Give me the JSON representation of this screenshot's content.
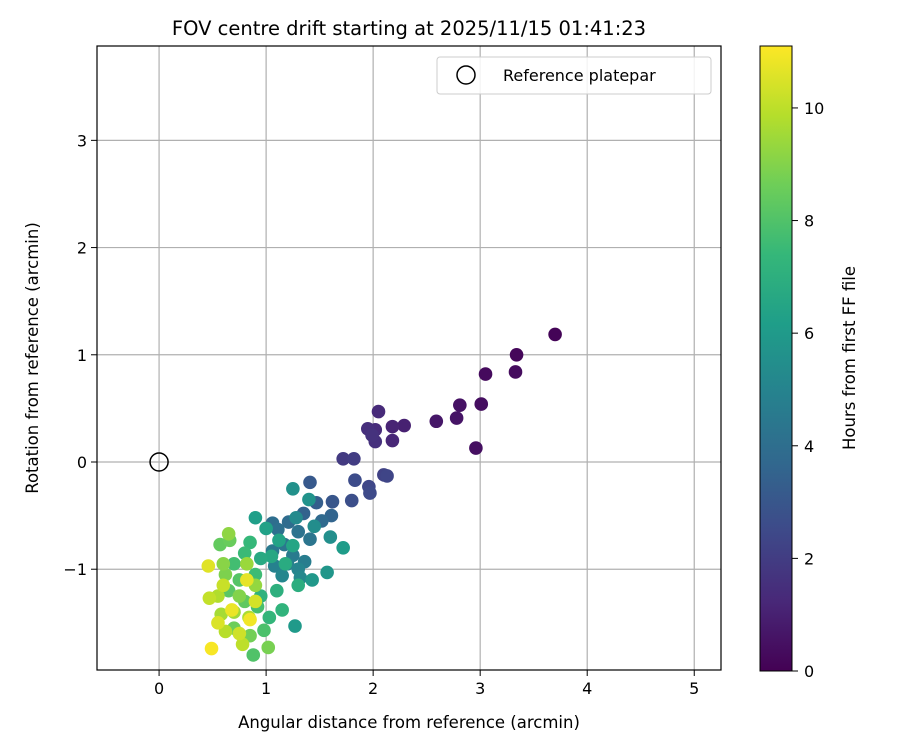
{
  "chart_data": {
    "type": "scatter",
    "title": "FOV centre drift starting at 2025/11/15 01:41:23",
    "xlabel": "Angular distance from reference (arcmin)",
    "ylabel": "Rotation from reference (arcmin)",
    "xlim": [
      -0.58,
      5.25
    ],
    "ylim": [
      -1.94,
      3.88
    ],
    "xticks": [
      0,
      1,
      2,
      3,
      4,
      5
    ],
    "yticks": [
      -1,
      0,
      1,
      2,
      3
    ],
    "grid": true,
    "legend": {
      "position": "top-right",
      "entries": [
        {
          "label": "Reference platepar",
          "marker": "open-circle"
        }
      ]
    },
    "reference_point": {
      "x": 0,
      "y": 0
    },
    "colorbar": {
      "label": "Hours from first FF file",
      "range": [
        0,
        11.1
      ],
      "ticks": [
        0,
        2,
        4,
        6,
        8,
        10
      ],
      "colormap": "viridis",
      "stops": [
        "#440154",
        "#482878",
        "#3e4989",
        "#31688e",
        "#26828e",
        "#1f9e89",
        "#35b779",
        "#6ece58",
        "#b5de2b",
        "#fde725"
      ]
    },
    "points": [
      {
        "x": 3.7,
        "y": 1.19,
        "t": 0.1
      },
      {
        "x": 3.34,
        "y": 1.0,
        "t": 0.2
      },
      {
        "x": 3.05,
        "y": 0.82,
        "t": 0.3
      },
      {
        "x": 3.33,
        "y": 0.84,
        "t": 0.35
      },
      {
        "x": 3.01,
        "y": 0.54,
        "t": 0.4
      },
      {
        "x": 2.96,
        "y": 0.13,
        "t": 0.45
      },
      {
        "x": 2.81,
        "y": 0.53,
        "t": 0.55
      },
      {
        "x": 2.78,
        "y": 0.41,
        "t": 0.6
      },
      {
        "x": 2.59,
        "y": 0.38,
        "t": 0.7
      },
      {
        "x": 2.29,
        "y": 0.34,
        "t": 1.0
      },
      {
        "x": 2.18,
        "y": 0.33,
        "t": 1.1
      },
      {
        "x": 2.18,
        "y": 0.2,
        "t": 1.2
      },
      {
        "x": 2.05,
        "y": 0.47,
        "t": 1.3
      },
      {
        "x": 2.02,
        "y": 0.3,
        "t": 1.4
      },
      {
        "x": 1.95,
        "y": 0.31,
        "t": 1.5
      },
      {
        "x": 2.02,
        "y": 0.19,
        "t": 1.55
      },
      {
        "x": 1.99,
        "y": 0.25,
        "t": 1.6
      },
      {
        "x": 1.72,
        "y": 0.03,
        "t": 1.9
      },
      {
        "x": 1.82,
        "y": 0.03,
        "t": 2.0
      },
      {
        "x": 2.1,
        "y": -0.12,
        "t": 2.2
      },
      {
        "x": 2.13,
        "y": -0.13,
        "t": 2.3
      },
      {
        "x": 1.96,
        "y": -0.23,
        "t": 2.4
      },
      {
        "x": 1.97,
        "y": -0.29,
        "t": 2.5
      },
      {
        "x": 1.83,
        "y": -0.17,
        "t": 2.6
      },
      {
        "x": 1.8,
        "y": -0.36,
        "t": 2.7
      },
      {
        "x": 1.62,
        "y": -0.37,
        "t": 3.0
      },
      {
        "x": 1.41,
        "y": -0.19,
        "t": 3.1
      },
      {
        "x": 1.47,
        "y": -0.38,
        "t": 3.3
      },
      {
        "x": 1.35,
        "y": -0.48,
        "t": 3.5
      },
      {
        "x": 1.61,
        "y": -0.5,
        "t": 3.6
      },
      {
        "x": 1.52,
        "y": -0.55,
        "t": 3.8
      },
      {
        "x": 1.21,
        "y": -0.56,
        "t": 3.9
      },
      {
        "x": 1.06,
        "y": -0.57,
        "t": 4.0
      },
      {
        "x": 1.11,
        "y": -0.63,
        "t": 4.1
      },
      {
        "x": 1.3,
        "y": -0.65,
        "t": 4.2
      },
      {
        "x": 1.41,
        "y": -0.72,
        "t": 4.3
      },
      {
        "x": 1.17,
        "y": -0.77,
        "t": 4.4
      },
      {
        "x": 1.06,
        "y": -0.83,
        "t": 4.5
      },
      {
        "x": 1.25,
        "y": -0.87,
        "t": 4.6
      },
      {
        "x": 1.36,
        "y": -0.93,
        "t": 4.7
      },
      {
        "x": 1.2,
        "y": -0.95,
        "t": 4.8
      },
      {
        "x": 1.08,
        "y": -0.97,
        "t": 4.9
      },
      {
        "x": 1.3,
        "y": -1.0,
        "t": 5.0
      },
      {
        "x": 1.15,
        "y": -1.06,
        "t": 5.1
      },
      {
        "x": 1.32,
        "y": -1.08,
        "t": 5.2
      },
      {
        "x": 1.28,
        "y": -0.52,
        "t": 5.3
      },
      {
        "x": 1.45,
        "y": -0.6,
        "t": 5.4
      },
      {
        "x": 1.6,
        "y": -0.7,
        "t": 5.5
      },
      {
        "x": 1.25,
        "y": -0.25,
        "t": 5.6
      },
      {
        "x": 1.4,
        "y": -0.35,
        "t": 5.7
      },
      {
        "x": 1.57,
        "y": -1.03,
        "t": 5.8
      },
      {
        "x": 1.43,
        "y": -1.1,
        "t": 5.9
      },
      {
        "x": 1.27,
        "y": -1.53,
        "t": 6.0
      },
      {
        "x": 1.72,
        "y": -0.8,
        "t": 6.1
      },
      {
        "x": 0.9,
        "y": -0.52,
        "t": 6.2
      },
      {
        "x": 1.0,
        "y": -0.62,
        "t": 6.3
      },
      {
        "x": 1.12,
        "y": -0.73,
        "t": 6.4
      },
      {
        "x": 1.25,
        "y": -0.78,
        "t": 6.5
      },
      {
        "x": 1.05,
        "y": -0.88,
        "t": 6.6
      },
      {
        "x": 0.95,
        "y": -0.9,
        "t": 6.7
      },
      {
        "x": 1.18,
        "y": -0.95,
        "t": 6.8
      },
      {
        "x": 1.3,
        "y": -1.15,
        "t": 6.9
      },
      {
        "x": 1.1,
        "y": -1.2,
        "t": 7.0
      },
      {
        "x": 0.95,
        "y": -1.25,
        "t": 7.1
      },
      {
        "x": 1.15,
        "y": -1.38,
        "t": 7.2
      },
      {
        "x": 1.03,
        "y": -1.45,
        "t": 7.3
      },
      {
        "x": 0.85,
        "y": -0.75,
        "t": 7.4
      },
      {
        "x": 0.8,
        "y": -0.85,
        "t": 7.5
      },
      {
        "x": 0.9,
        "y": -1.05,
        "t": 7.6
      },
      {
        "x": 0.7,
        "y": -0.95,
        "t": 7.7
      },
      {
        "x": 0.92,
        "y": -1.35,
        "t": 7.8
      },
      {
        "x": 0.98,
        "y": -1.57,
        "t": 7.9
      },
      {
        "x": 0.88,
        "y": -1.8,
        "t": 8.0
      },
      {
        "x": 0.75,
        "y": -1.1,
        "t": 8.1
      },
      {
        "x": 0.65,
        "y": -1.2,
        "t": 8.2
      },
      {
        "x": 0.8,
        "y": -1.3,
        "t": 8.3
      },
      {
        "x": 0.57,
        "y": -0.77,
        "t": 8.4
      },
      {
        "x": 0.66,
        "y": -0.73,
        "t": 8.5
      },
      {
        "x": 0.7,
        "y": -1.55,
        "t": 8.6
      },
      {
        "x": 0.85,
        "y": -1.62,
        "t": 8.7
      },
      {
        "x": 1.02,
        "y": -1.73,
        "t": 8.8
      },
      {
        "x": 0.62,
        "y": -1.05,
        "t": 8.9
      },
      {
        "x": 0.75,
        "y": -1.25,
        "t": 9.0
      },
      {
        "x": 0.6,
        "y": -0.95,
        "t": 9.1
      },
      {
        "x": 0.65,
        "y": -0.67,
        "t": 9.2
      },
      {
        "x": 0.9,
        "y": -1.15,
        "t": 9.3
      },
      {
        "x": 0.82,
        "y": -0.95,
        "t": 9.4
      },
      {
        "x": 0.7,
        "y": -1.4,
        "t": 9.5
      },
      {
        "x": 0.58,
        "y": -1.42,
        "t": 9.6
      },
      {
        "x": 0.84,
        "y": -1.45,
        "t": 9.7
      },
      {
        "x": 0.55,
        "y": -1.25,
        "t": 9.8
      },
      {
        "x": 0.62,
        "y": -1.58,
        "t": 9.9
      },
      {
        "x": 0.78,
        "y": -1.7,
        "t": 10.0
      },
      {
        "x": 0.47,
        "y": -1.27,
        "t": 10.1
      },
      {
        "x": 0.6,
        "y": -1.15,
        "t": 10.2
      },
      {
        "x": 0.75,
        "y": -1.6,
        "t": 10.3
      },
      {
        "x": 0.9,
        "y": -1.3,
        "t": 10.4
      },
      {
        "x": 0.55,
        "y": -1.5,
        "t": 10.5
      },
      {
        "x": 0.46,
        "y": -0.97,
        "t": 10.6
      },
      {
        "x": 0.82,
        "y": -1.1,
        "t": 10.7
      },
      {
        "x": 0.68,
        "y": -1.38,
        "t": 10.8
      },
      {
        "x": 0.85,
        "y": -1.47,
        "t": 10.9
      },
      {
        "x": 0.49,
        "y": -1.74,
        "t": 11.0
      }
    ]
  }
}
